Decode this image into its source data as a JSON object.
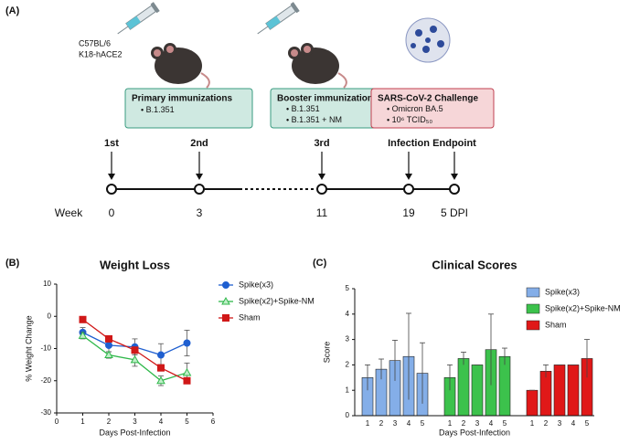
{
  "panel_labels": [
    "(A)",
    "(B)",
    "(C)"
  ],
  "schedule": {
    "strain": [
      "C57BL/6",
      "K18-hACE2"
    ],
    "boxes": [
      {
        "title": "Primary immunizations",
        "items": [
          "B.1.351"
        ]
      },
      {
        "title": "Booster immunization",
        "items": [
          "B.1.351",
          "B.1.351 + NM"
        ]
      },
      {
        "title": "SARS-CoV-2 Challenge",
        "items": [
          "Omicron BA.5",
          "10⁶ TCID₅₀"
        ]
      }
    ],
    "events": [
      "1st",
      "2nd",
      "3rd",
      "Infection",
      "Endpoint"
    ],
    "axis_label": "Week",
    "weeks": [
      "0",
      "3",
      "11",
      "19",
      "5 DPI"
    ]
  },
  "chart_data": [
    {
      "type": "line",
      "title": "Weight Loss",
      "ylabel": "% Weight Change",
      "xlabel": "Days Post-Infection",
      "x": [
        1,
        2,
        3,
        4,
        5
      ],
      "xlim": [
        0,
        6
      ],
      "xticks": [
        0,
        1,
        2,
        3,
        4,
        5,
        6
      ],
      "ylim": [
        -30,
        10
      ],
      "yticks": [
        -30,
        -20,
        -10,
        0,
        10
      ],
      "series": [
        {
          "name": "Spike(x3)",
          "color": "#1f5fd0",
          "marker": "circle",
          "values": [
            -5,
            -9,
            -9.5,
            -12,
            -8.3
          ],
          "errors": [
            1.5,
            2,
            2.5,
            3.5,
            4
          ]
        },
        {
          "name": "Spike(x2)+Spike-NM",
          "color": "#2fb84a",
          "marker": "triangle",
          "values": [
            -6,
            -12,
            -13.5,
            -20,
            -17.5
          ],
          "errors": [
            1,
            1,
            2,
            1.5,
            3
          ]
        },
        {
          "name": "Sham",
          "color": "#d01818",
          "marker": "square",
          "values": [
            -1,
            -7,
            -10.5,
            -16,
            -20
          ],
          "errors": [
            0,
            0.5,
            1,
            1,
            0
          ]
        }
      ]
    },
    {
      "type": "bar",
      "title": "Clinical Scores",
      "ylabel": "Score",
      "xlabel": "Days Post-Infection",
      "categories": [
        "1",
        "2",
        "3",
        "4",
        "5"
      ],
      "ylim": [
        0,
        5
      ],
      "yticks": [
        0,
        1,
        2,
        3,
        4,
        5
      ],
      "series": [
        {
          "name": "Spike(x3)",
          "color": "#84aee8",
          "values": [
            1.5,
            1.83,
            2.17,
            2.33,
            1.67
          ],
          "errors": [
            0.5,
            0.4,
            0.8,
            1.7,
            1.2
          ]
        },
        {
          "name": "Spike(x2)+Spike-NM",
          "color": "#3cc24c",
          "values": [
            1.5,
            2.25,
            2.0,
            2.6,
            2.33
          ],
          "errors": [
            0.5,
            0.25,
            0,
            1.4,
            0.33
          ]
        },
        {
          "name": "Sham",
          "color": "#e01818",
          "values": [
            1.0,
            1.75,
            2.0,
            2.0,
            2.25
          ],
          "errors": [
            0,
            0.25,
            0,
            0,
            0.75
          ]
        }
      ]
    }
  ]
}
